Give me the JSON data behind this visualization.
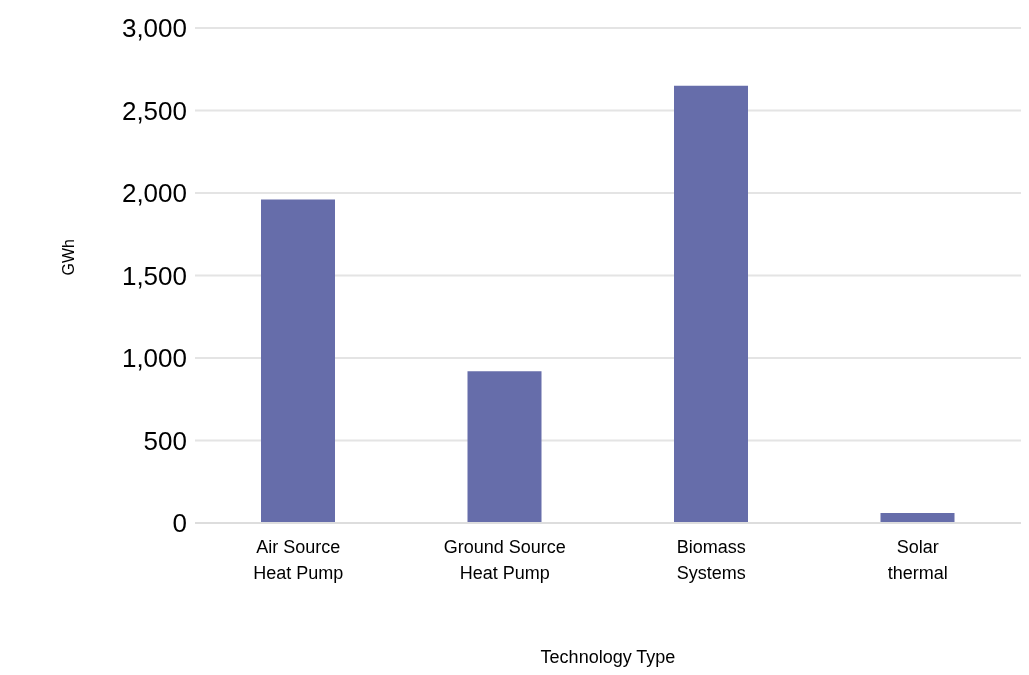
{
  "chart_data": {
    "type": "bar",
    "xlabel": "Technology Type",
    "ylabel": "GWh",
    "categories": [
      "Air Source Heat Pump",
      "Ground Source Heat Pump",
      "Biomass Systems",
      "Solar thermal"
    ],
    "values": [
      1960,
      920,
      2650,
      60
    ],
    "color": "#666daa",
    "ylim": [
      0,
      3000
    ],
    "yticks": [
      0,
      500,
      {
        "value": 1000,
        "label": "1,000"
      },
      {
        "value": 1500,
        "label": "1,500"
      },
      {
        "value": 2000,
        "label": "2,000"
      },
      {
        "value": 2500,
        "label": "2,500"
      },
      {
        "value": 3000,
        "label": "3,000"
      }
    ],
    "grid": "y"
  }
}
